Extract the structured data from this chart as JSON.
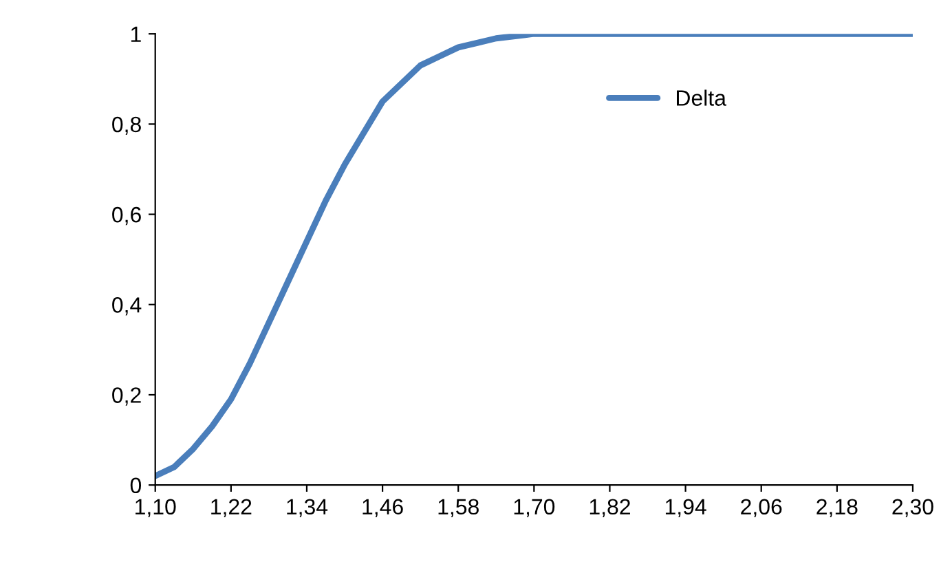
{
  "chart_data": {
    "type": "line",
    "x": [
      1.1,
      1.13,
      1.16,
      1.19,
      1.22,
      1.25,
      1.28,
      1.31,
      1.34,
      1.37,
      1.4,
      1.43,
      1.46,
      1.49,
      1.52,
      1.55,
      1.58,
      1.61,
      1.64,
      1.7,
      1.8,
      2.3
    ],
    "series": [
      {
        "name": "Delta",
        "color": "#4a7ebb",
        "values": [
          0.02,
          0.04,
          0.08,
          0.13,
          0.19,
          0.27,
          0.36,
          0.45,
          0.54,
          0.63,
          0.71,
          0.78,
          0.85,
          0.89,
          0.93,
          0.95,
          0.97,
          0.98,
          0.99,
          1.0,
          1.0,
          1.0
        ]
      }
    ],
    "xlim": [
      1.1,
      2.3
    ],
    "xticks": [
      {
        "value": 1.1,
        "label": "1,10"
      },
      {
        "value": 1.22,
        "label": "1,22"
      },
      {
        "value": 1.34,
        "label": "1,34"
      },
      {
        "value": 1.46,
        "label": "1,46"
      },
      {
        "value": 1.58,
        "label": "1,58"
      },
      {
        "value": 1.7,
        "label": "1,70"
      },
      {
        "value": 1.82,
        "label": "1,82"
      },
      {
        "value": 1.94,
        "label": "1,94"
      },
      {
        "value": 2.06,
        "label": "2,06"
      },
      {
        "value": 2.18,
        "label": "2,18"
      },
      {
        "value": 2.3,
        "label": "2,30"
      }
    ],
    "ylim": [
      0,
      1
    ],
    "yticks": [
      0,
      {
        "value": 0.2,
        "label": "0,2"
      },
      {
        "value": 0.4,
        "label": "0,4"
      },
      {
        "value": 0.6,
        "label": "0,6"
      },
      {
        "value": 0.8,
        "label": "0,8"
      },
      1
    ],
    "grid": false,
    "legend": "top right",
    "marker": "none",
    "line_style": "solid"
  }
}
